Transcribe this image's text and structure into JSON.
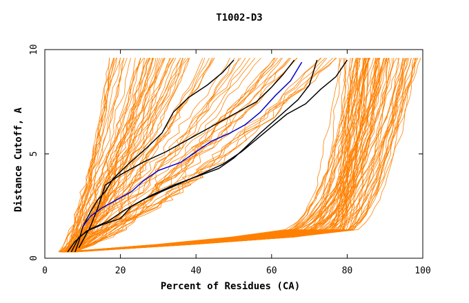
{
  "chart_data": {
    "type": "line",
    "title": "T1002-D3",
    "xlabel": "Percent of Residues (CA)",
    "ylabel": "Distance Cutoff, A",
    "xlim": [
      0,
      100
    ],
    "ylim": [
      0,
      10
    ],
    "x_ticks": [
      0,
      20,
      40,
      60,
      80,
      100
    ],
    "y_ticks": [
      0,
      5,
      10
    ],
    "colors": {
      "background_models": "#ff8000",
      "highlight_black": "#000000",
      "highlight_blue": "#0000cc",
      "axes": "#000000"
    },
    "series": [
      {
        "name": "model-black-1",
        "color": "#000000",
        "points": [
          [
            8,
            0.3
          ],
          [
            9,
            0.8
          ],
          [
            10,
            1.5
          ],
          [
            12,
            2.2
          ],
          [
            14,
            2.8
          ],
          [
            16,
            3.2
          ],
          [
            18,
            3.8
          ],
          [
            22,
            4.5
          ],
          [
            27,
            5.3
          ],
          [
            31,
            6.0
          ],
          [
            34,
            7.0
          ],
          [
            38,
            7.7
          ],
          [
            43,
            8.3
          ],
          [
            47,
            8.9
          ],
          [
            50,
            9.5
          ]
        ]
      },
      {
        "name": "model-black-2",
        "color": "#000000",
        "points": [
          [
            6,
            0.3
          ],
          [
            8,
            0.8
          ],
          [
            11,
            1.3
          ],
          [
            15,
            1.6
          ],
          [
            20,
            1.9
          ],
          [
            23,
            2.5
          ],
          [
            28,
            3.0
          ],
          [
            34,
            3.5
          ],
          [
            40,
            3.9
          ],
          [
            46,
            4.3
          ],
          [
            50,
            4.8
          ],
          [
            53,
            5.3
          ],
          [
            57,
            6.0
          ],
          [
            62,
            6.8
          ],
          [
            67,
            7.6
          ],
          [
            70,
            8.3
          ],
          [
            72,
            9.5
          ]
        ]
      },
      {
        "name": "model-black-3",
        "color": "#000000",
        "points": [
          [
            7,
            0.3
          ],
          [
            9,
            1.0
          ],
          [
            12,
            1.4
          ],
          [
            17,
            1.8
          ],
          [
            21,
            2.3
          ],
          [
            26,
            2.8
          ],
          [
            31,
            3.2
          ],
          [
            36,
            3.6
          ],
          [
            41,
            4.0
          ],
          [
            47,
            4.5
          ],
          [
            52,
            5.1
          ],
          [
            56,
            5.7
          ],
          [
            60,
            6.3
          ],
          [
            64,
            6.9
          ],
          [
            69,
            7.4
          ],
          [
            73,
            8.1
          ],
          [
            77,
            8.7
          ],
          [
            80,
            9.5
          ]
        ]
      },
      {
        "name": "model-black-4",
        "color": "#000000",
        "points": [
          [
            9,
            0.5
          ],
          [
            12,
            1.5
          ],
          [
            14,
            2.4
          ],
          [
            16,
            3.5
          ],
          [
            20,
            4.0
          ],
          [
            26,
            4.6
          ],
          [
            32,
            5.1
          ],
          [
            38,
            5.7
          ],
          [
            44,
            6.3
          ],
          [
            50,
            6.9
          ],
          [
            56,
            7.5
          ],
          [
            60,
            8.2
          ],
          [
            63,
            8.8
          ],
          [
            66,
            9.5
          ]
        ]
      },
      {
        "name": "model-blue",
        "color": "#0000cc",
        "points": [
          [
            10,
            1.5
          ],
          [
            12,
            2.0
          ],
          [
            15,
            2.4
          ],
          [
            19,
            2.8
          ],
          [
            23,
            3.2
          ],
          [
            26,
            3.7
          ],
          [
            30,
            4.2
          ],
          [
            36,
            4.6
          ],
          [
            40,
            5.1
          ],
          [
            44,
            5.6
          ],
          [
            49,
            6.0
          ],
          [
            53,
            6.4
          ],
          [
            57,
            7.0
          ],
          [
            61,
            7.8
          ],
          [
            65,
            8.5
          ],
          [
            68,
            9.4
          ]
        ]
      }
    ]
  }
}
